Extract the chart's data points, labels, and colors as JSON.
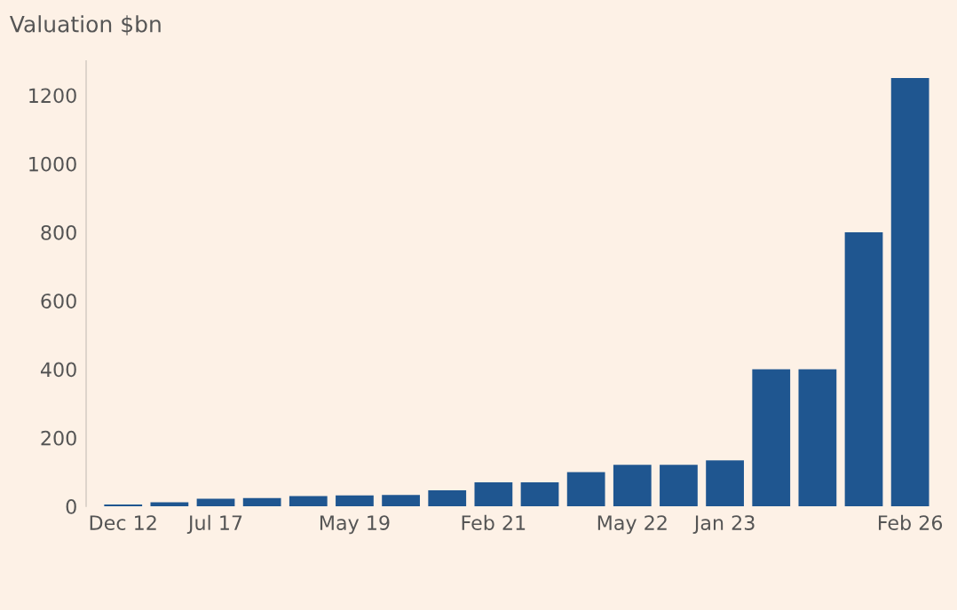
{
  "chart_data": {
    "type": "bar",
    "title": "Valuation $bn",
    "categories": [
      "Dec 12",
      null,
      "Jul 17",
      null,
      null,
      "May 19",
      null,
      null,
      "Feb 21",
      null,
      null,
      "May 22",
      null,
      "Jan 23",
      null,
      null,
      null,
      "Feb 26"
    ],
    "values": [
      5,
      12,
      22,
      24,
      30,
      32,
      33,
      47,
      70,
      70,
      100,
      121,
      121,
      134,
      400,
      400,
      800,
      1250
    ],
    "color": "#1f5690",
    "ylim": [
      0,
      1300
    ],
    "yticks": [
      0,
      200,
      400,
      600,
      800,
      1000,
      1200
    ],
    "grid": false
  }
}
